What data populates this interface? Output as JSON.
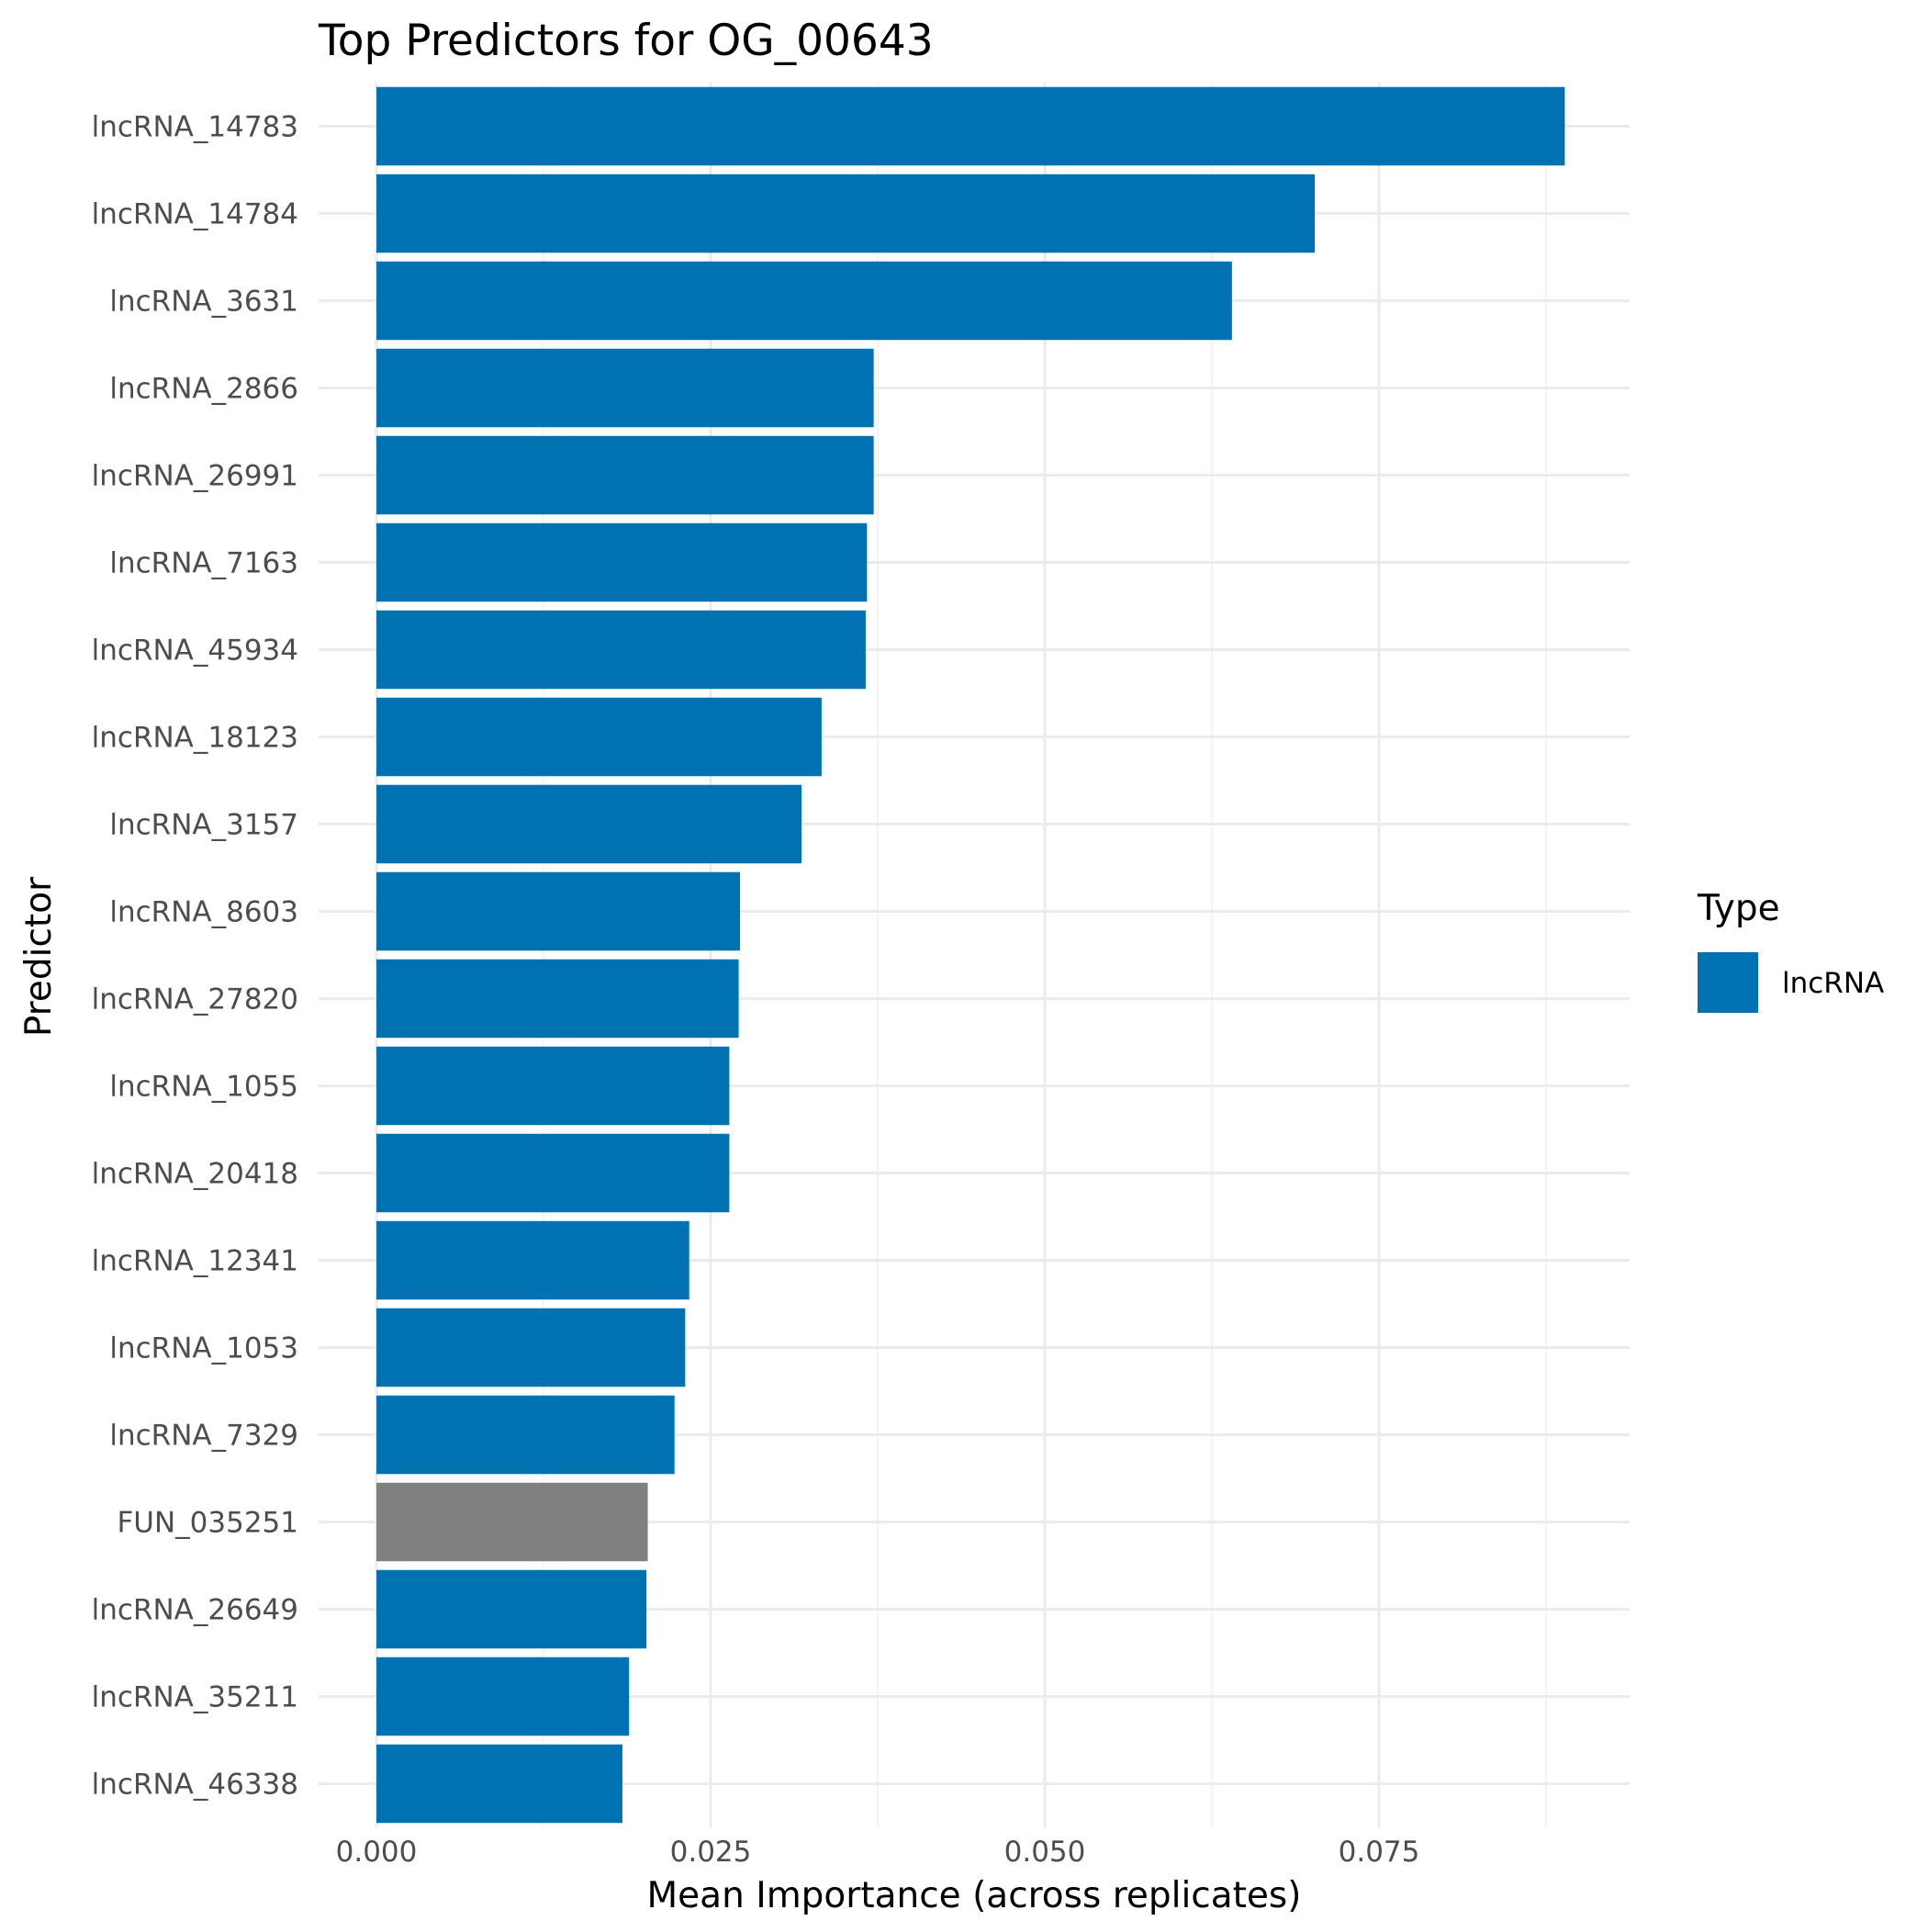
{
  "chart_data": {
    "type": "bar",
    "orientation": "horizontal",
    "title": "Top Predictors for OG_00643",
    "xlabel": "Mean Importance (across replicates)",
    "ylabel": "Predictor",
    "xlim": [
      0,
      0.093
    ],
    "xticks": [
      0.0,
      0.025,
      0.05,
      0.075
    ],
    "xtick_labels": [
      "0.000",
      "0.025",
      "0.050",
      "0.075"
    ],
    "grid": true,
    "legend": {
      "title": "Type",
      "placement": "right",
      "entries": [
        {
          "label": "lncRNA",
          "color": "#0072B2"
        }
      ]
    },
    "type_colors": {
      "lncRNA": "#0072B2",
      "other": "#808080"
    },
    "categories": [
      "lncRNA_14783",
      "lncRNA_14784",
      "lncRNA_3631",
      "lncRNA_2866",
      "lncRNA_26991",
      "lncRNA_7163",
      "lncRNA_45934",
      "lncRNA_18123",
      "lncRNA_3157",
      "lncRNA_8603",
      "lncRNA_27820",
      "lncRNA_1055",
      "lncRNA_20418",
      "lncRNA_12341",
      "lncRNA_1053",
      "lncRNA_7329",
      "FUN_035251",
      "lncRNA_26649",
      "lncRNA_35211",
      "lncRNA_46338"
    ],
    "values": [
      0.0889,
      0.0702,
      0.064,
      0.0372,
      0.0372,
      0.0367,
      0.0366,
      0.0333,
      0.0318,
      0.0272,
      0.0271,
      0.0264,
      0.0264,
      0.0234,
      0.0231,
      0.0223,
      0.0203,
      0.0202,
      0.0189,
      0.0184
    ],
    "bar_types": [
      "lncRNA",
      "lncRNA",
      "lncRNA",
      "lncRNA",
      "lncRNA",
      "lncRNA",
      "lncRNA",
      "lncRNA",
      "lncRNA",
      "lncRNA",
      "lncRNA",
      "lncRNA",
      "lncRNA",
      "lncRNA",
      "lncRNA",
      "lncRNA",
      "other",
      "lncRNA",
      "lncRNA",
      "lncRNA"
    ]
  }
}
